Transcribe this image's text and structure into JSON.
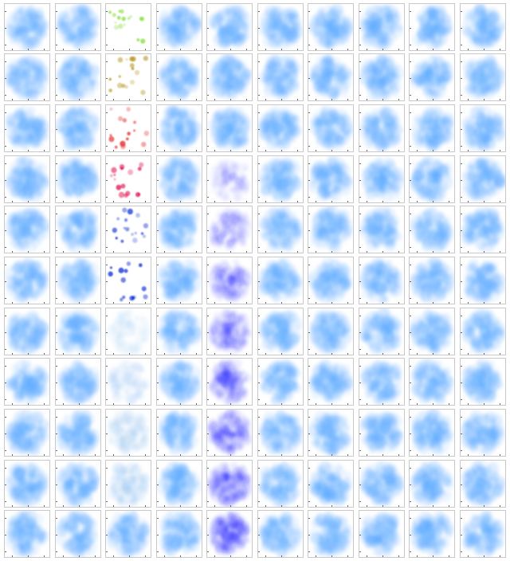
{
  "grid": {
    "rows": 11,
    "cols": 10,
    "colors": {
      "background": "#ffffff",
      "frame": "#c8c8c8",
      "light_blue": "#5aa8ff",
      "deep_blue": "#1a1aff",
      "green": "#8ee04a",
      "olive": "#b89a2a",
      "red": "#e83a3a",
      "crimson": "#e0124f",
      "royal_blue": "#1a3ad8",
      "pale_blue": "#9ec6f2"
    },
    "special_cells": [
      {
        "row": 0,
        "col": 2,
        "style": "sparse",
        "color": "green"
      },
      {
        "row": 1,
        "col": 2,
        "style": "sparse",
        "color": "olive"
      },
      {
        "row": 2,
        "col": 2,
        "style": "sparse",
        "color": "red"
      },
      {
        "row": 3,
        "col": 2,
        "style": "sparse",
        "color": "crimson"
      },
      {
        "row": 4,
        "col": 2,
        "style": "sparse",
        "color": "royal_blue"
      },
      {
        "row": 5,
        "col": 2,
        "style": "sparse",
        "color": "royal_blue"
      },
      {
        "row": 6,
        "col": 2,
        "style": "faint",
        "color": "pale_blue"
      },
      {
        "row": 7,
        "col": 2,
        "style": "faint",
        "color": "pale_blue"
      },
      {
        "row": 8,
        "col": 2,
        "style": "faint",
        "color": "pale_blue"
      },
      {
        "row": 9,
        "col": 2,
        "style": "faint",
        "color": "pale_blue"
      },
      {
        "row": 3,
        "col": 4,
        "style": "dense",
        "color": "deep_blue",
        "level": 0.25
      },
      {
        "row": 4,
        "col": 4,
        "style": "dense",
        "color": "deep_blue",
        "level": 0.45
      },
      {
        "row": 5,
        "col": 4,
        "style": "dense",
        "color": "deep_blue",
        "level": 0.6
      },
      {
        "row": 6,
        "col": 4,
        "style": "dense",
        "color": "deep_blue",
        "level": 0.7
      },
      {
        "row": 7,
        "col": 4,
        "style": "dense",
        "color": "deep_blue",
        "level": 0.78
      },
      {
        "row": 8,
        "col": 4,
        "style": "dense",
        "color": "deep_blue",
        "level": 0.85
      },
      {
        "row": 9,
        "col": 4,
        "style": "dense",
        "color": "deep_blue",
        "level": 0.92
      },
      {
        "row": 10,
        "col": 4,
        "style": "dense",
        "color": "deep_blue",
        "level": 1.0
      }
    ]
  }
}
